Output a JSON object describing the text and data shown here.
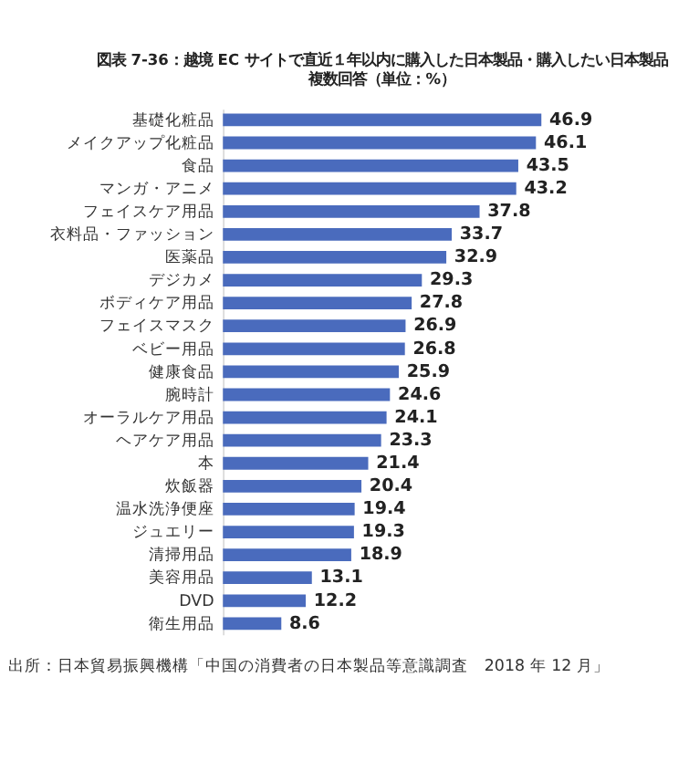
{
  "chart_data": {
    "type": "bar",
    "orientation": "horizontal",
    "title": "図表 7-36：越境 EC サイトで直近１年以内に購入した日本製品・購入したい日本製品",
    "subtitle": "複数回答（単位：%）",
    "categories": [
      "基礎化粧品",
      "メイクアップ化粧品",
      "食品",
      "マンガ・アニメ",
      "フェイスケア用品",
      "衣料品・ファッション",
      "医薬品",
      "デジカメ",
      "ボディケア用品",
      "フェイスマスク",
      "ベビー用品",
      "健康食品",
      "腕時計",
      "オーラルケア用品",
      "ヘアケア用品",
      "本",
      "炊飯器",
      "温水洗浄便座",
      "ジュエリー",
      "清掃用品",
      "美容用品",
      "DVD",
      "衛生用品"
    ],
    "values": [
      46.9,
      46.1,
      43.5,
      43.2,
      37.8,
      33.7,
      32.9,
      29.3,
      27.8,
      26.9,
      26.8,
      25.9,
      24.6,
      24.1,
      23.3,
      21.4,
      20.4,
      19.4,
      19.3,
      18.9,
      13.1,
      12.2,
      8.6
    ],
    "color": "#4a6bbd",
    "data_labels": true,
    "tick_labels": "y",
    "grid": false,
    "annotations": [
      "出所：日本貿易振興機構「中国の消費者の日本製品等意識調査　2018 年 12 月」"
    ]
  }
}
